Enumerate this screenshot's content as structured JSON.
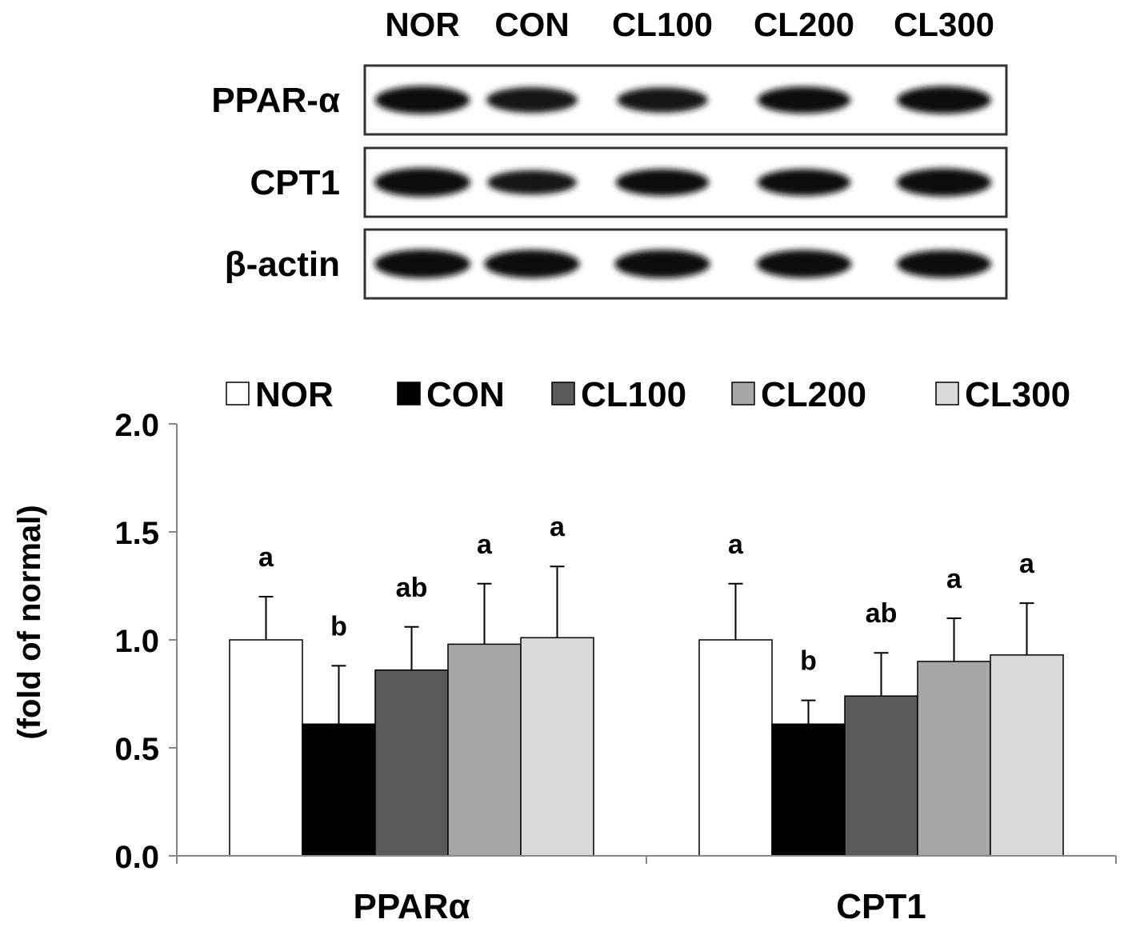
{
  "blot": {
    "lanes": [
      "NOR",
      "CON",
      "CL100",
      "CL200",
      "CL300"
    ],
    "rows": [
      {
        "label": "PPAR-α",
        "intensity": [
          0.95,
          0.8,
          0.78,
          0.88,
          0.92
        ]
      },
      {
        "label": "CPT1",
        "intensity": [
          1.0,
          0.72,
          0.88,
          0.88,
          0.95
        ]
      },
      {
        "label": "β-actin",
        "intensity": [
          1.0,
          0.97,
          0.98,
          0.96,
          0.93
        ]
      }
    ]
  },
  "chart_data": {
    "type": "bar",
    "categories": [
      "PPARα",
      "CPT1"
    ],
    "ylabel": "(fold of normal)",
    "ylim": [
      0,
      2.0
    ],
    "yticks": [
      "0.0",
      "0.5",
      "1.0",
      "1.5",
      "2.0"
    ],
    "legend_position": "top",
    "series": [
      {
        "name": "NOR",
        "color": "#ffffff",
        "values": [
          1.0,
          1.0
        ],
        "errors": [
          0.2,
          0.26
        ],
        "letters": [
          "a",
          "a"
        ]
      },
      {
        "name": "CON",
        "color": "#000000",
        "values": [
          0.61,
          0.61
        ],
        "errors": [
          0.27,
          0.11
        ],
        "letters": [
          "b",
          "b"
        ]
      },
      {
        "name": "CL100",
        "color": "#595959",
        "values": [
          0.86,
          0.74
        ],
        "errors": [
          0.2,
          0.2
        ],
        "letters": [
          "ab",
          "ab"
        ]
      },
      {
        "name": "CL200",
        "color": "#a6a6a6",
        "values": [
          0.98,
          0.9
        ],
        "errors": [
          0.28,
          0.2
        ],
        "letters": [
          "a",
          "a"
        ]
      },
      {
        "name": "CL300",
        "color": "#d9d9d9",
        "values": [
          1.01,
          0.93
        ],
        "errors": [
          0.33,
          0.24
        ],
        "letters": [
          "a",
          "a"
        ]
      }
    ]
  }
}
